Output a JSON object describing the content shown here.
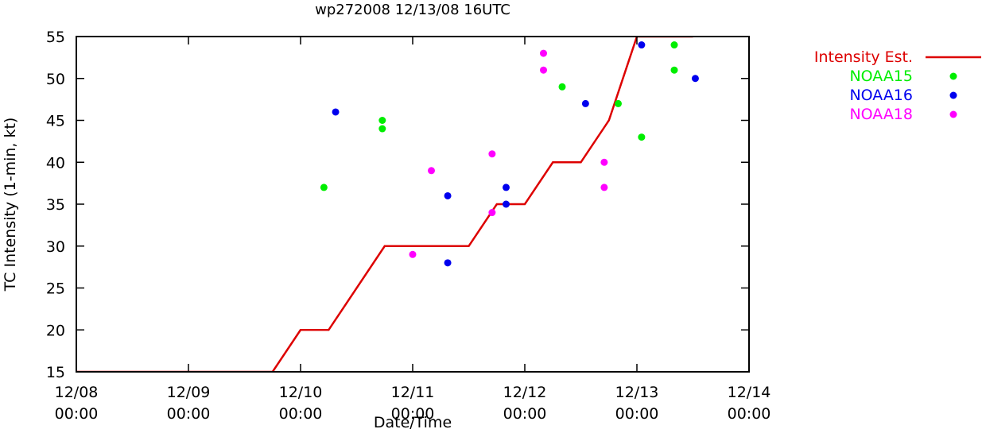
{
  "chart_data": {
    "type": "scatter",
    "title": "wp272008 12/13/08 16UTC",
    "xlabel": "Date/Time",
    "ylabel": "TC Intensity (1-min, kt)",
    "xlim": [
      "2008-12-08 00:00",
      "2008-12-14 00:00"
    ],
    "ylim": [
      15,
      55
    ],
    "x_ticks": [
      {
        "t": "2008-12-08 00:00",
        "line1": "12/08",
        "line2": "00:00"
      },
      {
        "t": "2008-12-09 00:00",
        "line1": "12/09",
        "line2": "00:00"
      },
      {
        "t": "2008-12-10 00:00",
        "line1": "12/10",
        "line2": "00:00"
      },
      {
        "t": "2008-12-11 00:00",
        "line1": "12/11",
        "line2": "00:00"
      },
      {
        "t": "2008-12-12 00:00",
        "line1": "12/12",
        "line2": "00:00"
      },
      {
        "t": "2008-12-13 00:00",
        "line1": "12/13",
        "line2": "00:00"
      },
      {
        "t": "2008-12-14 00:00",
        "line1": "12/14",
        "line2": "00:00"
      }
    ],
    "y_ticks": [
      "15",
      "20",
      "25",
      "30",
      "35",
      "40",
      "45",
      "50",
      "55"
    ],
    "grid": false,
    "legend_position": "outside-right-top",
    "series": [
      {
        "name": "Intensity Est.",
        "kind": "line",
        "color": "#dd0000",
        "points": [
          {
            "x": "2008-12-08 00:00",
            "y": 15
          },
          {
            "x": "2008-12-09 18:00",
            "y": 15
          },
          {
            "x": "2008-12-10 00:00",
            "y": 20
          },
          {
            "x": "2008-12-10 06:00",
            "y": 20
          },
          {
            "x": "2008-12-10 18:00",
            "y": 30
          },
          {
            "x": "2008-12-11 12:00",
            "y": 30
          },
          {
            "x": "2008-12-11 18:00",
            "y": 35
          },
          {
            "x": "2008-12-12 00:00",
            "y": 35
          },
          {
            "x": "2008-12-12 06:00",
            "y": 40
          },
          {
            "x": "2008-12-12 12:00",
            "y": 40
          },
          {
            "x": "2008-12-12 18:00",
            "y": 45
          },
          {
            "x": "2008-12-13 00:00",
            "y": 55
          },
          {
            "x": "2008-12-13 12:00",
            "y": 55
          }
        ]
      },
      {
        "name": "NOAA15",
        "kind": "points",
        "color": "#00ee00",
        "points": [
          {
            "x": "2008-12-10 05:00",
            "y": 37
          },
          {
            "x": "2008-12-10 17:30",
            "y": 45
          },
          {
            "x": "2008-12-10 17:30",
            "y": 44
          },
          {
            "x": "2008-12-12 08:00",
            "y": 49
          },
          {
            "x": "2008-12-12 20:00",
            "y": 47
          },
          {
            "x": "2008-12-13 01:00",
            "y": 43
          },
          {
            "x": "2008-12-13 08:00",
            "y": 54
          },
          {
            "x": "2008-12-13 08:00",
            "y": 51
          }
        ]
      },
      {
        "name": "NOAA16",
        "kind": "points",
        "color": "#0000ee",
        "points": [
          {
            "x": "2008-12-10 07:30",
            "y": 46
          },
          {
            "x": "2008-12-11 07:30",
            "y": 36
          },
          {
            "x": "2008-12-11 07:30",
            "y": 28
          },
          {
            "x": "2008-12-11 20:00",
            "y": 37
          },
          {
            "x": "2008-12-11 20:00",
            "y": 35
          },
          {
            "x": "2008-12-12 13:00",
            "y": 47
          },
          {
            "x": "2008-12-13 01:00",
            "y": 54
          },
          {
            "x": "2008-12-13 12:30",
            "y": 50
          }
        ]
      },
      {
        "name": "NOAA18",
        "kind": "points",
        "color": "#ff00ff",
        "points": [
          {
            "x": "2008-12-11 00:00",
            "y": 29
          },
          {
            "x": "2008-12-11 04:00",
            "y": 39
          },
          {
            "x": "2008-12-11 17:00",
            "y": 41
          },
          {
            "x": "2008-12-11 17:00",
            "y": 34
          },
          {
            "x": "2008-12-12 04:00",
            "y": 53
          },
          {
            "x": "2008-12-12 04:00",
            "y": 51
          },
          {
            "x": "2008-12-12 17:00",
            "y": 40
          },
          {
            "x": "2008-12-12 17:00",
            "y": 37
          }
        ]
      }
    ]
  }
}
